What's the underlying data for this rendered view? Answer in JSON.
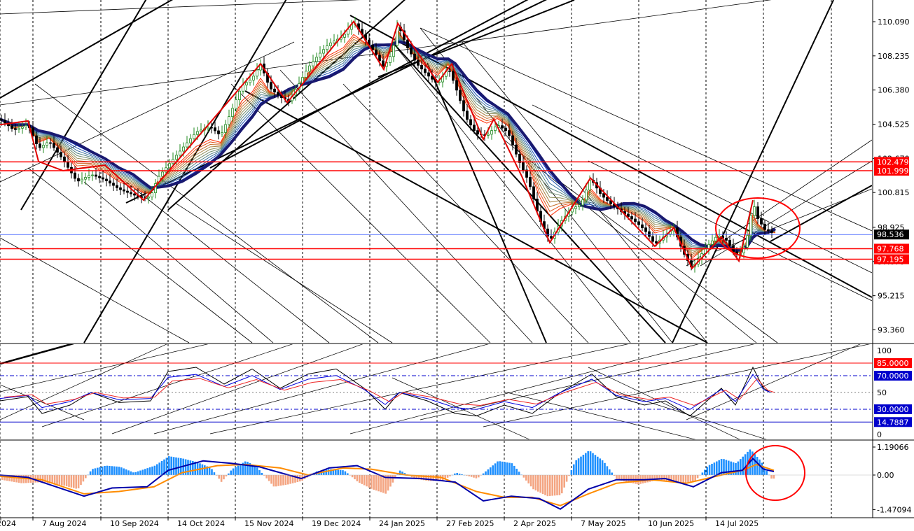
{
  "chart_data": {
    "type": "candlestick",
    "price_axis": {
      "ticks": [
        "110.090",
        "108.235",
        "106.380",
        "104.525",
        "102.670",
        "100.815",
        "98.925",
        "97.070",
        "95.215",
        "93.360"
      ],
      "tick_values": [
        110.09,
        108.235,
        106.38,
        104.525,
        102.67,
        100.815,
        98.925,
        97.07,
        95.215,
        93.36
      ],
      "ylim": [
        92.4,
        111.2
      ]
    },
    "price_levels": [
      {
        "label": "102.479",
        "value": 102.479,
        "color": "#ff0000"
      },
      {
        "label": "101.999",
        "value": 101.999,
        "color": "#ff0000"
      },
      {
        "label": "98.536",
        "value": 98.536,
        "color": "#000000",
        "current": true
      },
      {
        "label": "97.768",
        "value": 97.768,
        "color": "#ff0000"
      },
      {
        "label": "97.195",
        "value": 97.195,
        "color": "#ff0000"
      }
    ],
    "date_labels": [
      "2024",
      "7 Aug 2024",
      "10 Sep 2024",
      "14 Oct 2024",
      "15 Nov 2024",
      "19 Dec 2024",
      "24 Jan 2025",
      "27 Feb 2025",
      "2 Apr 2025",
      "7 May 2025",
      "10 Jun 2025",
      "14 Jul 2025"
    ],
    "price_series": [
      [
        0,
        104.8
      ],
      [
        20,
        104.2
      ],
      [
        40,
        104.5
      ],
      [
        55,
        103.2
      ],
      [
        70,
        103.6
      ],
      [
        90,
        102.6
      ],
      [
        110,
        101.4
      ],
      [
        130,
        101.8
      ],
      [
        150,
        101.5
      ],
      [
        170,
        101.0
      ],
      [
        190,
        100.7
      ],
      [
        205,
        100.5
      ],
      [
        215,
        100.6
      ],
      [
        225,
        101.6
      ],
      [
        240,
        102.3
      ],
      [
        260,
        103.2
      ],
      [
        280,
        104.1
      ],
      [
        300,
        104.4
      ],
      [
        315,
        103.9
      ],
      [
        330,
        105.2
      ],
      [
        345,
        106.6
      ],
      [
        360,
        107.0
      ],
      [
        372,
        107.8
      ],
      [
        385,
        106.5
      ],
      [
        400,
        106.0
      ],
      [
        412,
        105.8
      ],
      [
        425,
        106.6
      ],
      [
        440,
        107.6
      ],
      [
        455,
        108.3
      ],
      [
        470,
        108.9
      ],
      [
        490,
        109.3
      ],
      [
        505,
        110.1
      ],
      [
        520,
        109.2
      ],
      [
        535,
        108.4
      ],
      [
        548,
        107.6
      ],
      [
        560,
        108.4
      ],
      [
        568,
        110.0
      ],
      [
        580,
        108.8
      ],
      [
        595,
        107.8
      ],
      [
        610,
        107.2
      ],
      [
        625,
        106.7
      ],
      [
        640,
        107.6
      ],
      [
        650,
        106.6
      ],
      [
        665,
        104.9
      ],
      [
        680,
        104.0
      ],
      [
        695,
        103.9
      ],
      [
        710,
        104.5
      ],
      [
        725,
        104.1
      ],
      [
        740,
        102.6
      ],
      [
        755,
        101.4
      ],
      [
        770,
        99.4
      ],
      [
        785,
        98.2
      ],
      [
        800,
        99.2
      ],
      [
        815,
        99.9
      ],
      [
        830,
        100.2
      ],
      [
        843,
        101.6
      ],
      [
        858,
        100.7
      ],
      [
        872,
        100.2
      ],
      [
        890,
        99.7
      ],
      [
        905,
        99.3
      ],
      [
        920,
        98.8
      ],
      [
        935,
        98.0
      ],
      [
        950,
        98.5
      ],
      [
        962,
        98.9
      ],
      [
        975,
        97.6
      ],
      [
        988,
        96.7
      ],
      [
        1000,
        97.4
      ],
      [
        1012,
        98.0
      ],
      [
        1025,
        98.5
      ],
      [
        1038,
        98.2
      ],
      [
        1050,
        97.4
      ],
      [
        1060,
        97.6
      ],
      [
        1068,
        98.6
      ],
      [
        1075,
        100.3
      ],
      [
        1082,
        99.4
      ],
      [
        1092,
        98.8
      ],
      [
        1100,
        98.7
      ],
      [
        1107,
        98.5
      ]
    ],
    "rsi": {
      "ticks": [
        "100",
        "85.0000",
        "70.0000",
        "50",
        "30.0000",
        "14.7887",
        "0"
      ],
      "levels": [
        {
          "label": "85.0000",
          "value": 85,
          "color": "#ff0000"
        },
        {
          "label": "70.0000",
          "value": 70,
          "color": "#0000cc"
        },
        {
          "label": "30.0000",
          "value": 30,
          "color": "#0000cc"
        },
        {
          "label": "14.7887",
          "value": 14.7887,
          "color": "#0000cc"
        }
      ],
      "series": [
        [
          0,
          40
        ],
        [
          40,
          45
        ],
        [
          60,
          25
        ],
        [
          100,
          35
        ],
        [
          130,
          50
        ],
        [
          170,
          38
        ],
        [
          215,
          40
        ],
        [
          240,
          75
        ],
        [
          280,
          80
        ],
        [
          320,
          60
        ],
        [
          360,
          78
        ],
        [
          400,
          55
        ],
        [
          440,
          72
        ],
        [
          480,
          78
        ],
        [
          520,
          55
        ],
        [
          550,
          30
        ],
        [
          570,
          50
        ],
        [
          610,
          40
        ],
        [
          650,
          25
        ],
        [
          680,
          22
        ],
        [
          720,
          35
        ],
        [
          760,
          25
        ],
        [
          800,
          50
        ],
        [
          845,
          72
        ],
        [
          880,
          45
        ],
        [
          920,
          35
        ],
        [
          950,
          40
        ],
        [
          985,
          22
        ],
        [
          1030,
          55
        ],
        [
          1050,
          35
        ],
        [
          1075,
          80
        ],
        [
          1090,
          55
        ],
        [
          1100,
          50
        ]
      ]
    },
    "macd": {
      "ticks": [
        "1.19066",
        "0.00",
        "-1.47094"
      ],
      "tick_values": [
        1.19066,
        0,
        -1.47094
      ],
      "histogram": [
        [
          0,
          -0.2
        ],
        [
          30,
          -0.35
        ],
        [
          60,
          -0.3
        ],
        [
          90,
          -0.45
        ],
        [
          110,
          -0.6
        ],
        [
          130,
          0.25
        ],
        [
          150,
          0.4
        ],
        [
          170,
          0.35
        ],
        [
          190,
          0.1
        ],
        [
          220,
          0.4
        ],
        [
          240,
          0.8
        ],
        [
          260,
          0.7
        ],
        [
          280,
          0.55
        ],
        [
          300,
          0.3
        ],
        [
          315,
          -0.3
        ],
        [
          330,
          0.25
        ],
        [
          350,
          0.6
        ],
        [
          365,
          0.35
        ],
        [
          390,
          -0.5
        ],
        [
          410,
          -0.4
        ],
        [
          430,
          -0.25
        ],
        [
          450,
          0.15
        ],
        [
          470,
          0.25
        ],
        [
          490,
          0.2
        ],
        [
          510,
          -0.3
        ],
        [
          530,
          -0.6
        ],
        [
          550,
          -0.8
        ],
        [
          570,
          0.2
        ],
        [
          590,
          -0.15
        ],
        [
          610,
          -0.25
        ],
        [
          630,
          -0.25
        ],
        [
          650,
          0.1
        ],
        [
          680,
          -0.15
        ],
        [
          710,
          0.6
        ],
        [
          730,
          0.5
        ],
        [
          760,
          -0.6
        ],
        [
          780,
          -0.9
        ],
        [
          800,
          -0.85
        ],
        [
          820,
          0.6
        ],
        [
          840,
          1.05
        ],
        [
          860,
          0.6
        ],
        [
          880,
          -0.2
        ],
        [
          910,
          -0.4
        ],
        [
          940,
          -0.2
        ],
        [
          970,
          -0.35
        ],
        [
          990,
          -0.3
        ],
        [
          1010,
          0.4
        ],
        [
          1030,
          0.7
        ],
        [
          1050,
          0.5
        ],
        [
          1070,
          1.1
        ],
        [
          1085,
          0.6
        ],
        [
          1100,
          -0.15
        ]
      ],
      "main_line": [
        [
          0,
          0
        ],
        [
          40,
          -0.1
        ],
        [
          80,
          -0.5
        ],
        [
          120,
          -0.9
        ],
        [
          160,
          -0.55
        ],
        [
          210,
          -0.5
        ],
        [
          240,
          0.2
        ],
        [
          290,
          0.6
        ],
        [
          330,
          0.5
        ],
        [
          370,
          0.35
        ],
        [
          400,
          0.1
        ],
        [
          430,
          -0.15
        ],
        [
          470,
          0.3
        ],
        [
          510,
          0.4
        ],
        [
          550,
          -0.1
        ],
        [
          600,
          -0.15
        ],
        [
          650,
          -0.3
        ],
        [
          690,
          -1.1
        ],
        [
          730,
          -0.9
        ],
        [
          770,
          -1.0
        ],
        [
          800,
          -1.45
        ],
        [
          840,
          -0.6
        ],
        [
          880,
          -0.2
        ],
        [
          920,
          -0.2
        ],
        [
          950,
          -0.15
        ],
        [
          990,
          -0.5
        ],
        [
          1030,
          0.1
        ],
        [
          1060,
          0.2
        ],
        [
          1075,
          0.7
        ],
        [
          1090,
          0.25
        ],
        [
          1105,
          0.15
        ]
      ],
      "signal_line": [
        [
          0,
          -0.05
        ],
        [
          60,
          -0.2
        ],
        [
          120,
          -0.8
        ],
        [
          170,
          -0.7
        ],
        [
          220,
          -0.5
        ],
        [
          260,
          0.1
        ],
        [
          310,
          0.4
        ],
        [
          350,
          0.45
        ],
        [
          400,
          0.3
        ],
        [
          440,
          0.0
        ],
        [
          490,
          0.3
        ],
        [
          530,
          0.25
        ],
        [
          580,
          0.0
        ],
        [
          630,
          -0.1
        ],
        [
          680,
          -0.7
        ],
        [
          720,
          -0.95
        ],
        [
          760,
          -0.95
        ],
        [
          800,
          -1.3
        ],
        [
          840,
          -0.8
        ],
        [
          880,
          -0.35
        ],
        [
          930,
          -0.2
        ],
        [
          980,
          -0.35
        ],
        [
          1030,
          0.0
        ],
        [
          1060,
          0.2
        ],
        [
          1080,
          0.45
        ],
        [
          1105,
          0.2
        ]
      ]
    },
    "colors": {
      "bull_candle": "#228b22",
      "bear_candle": "#000000",
      "ma_thick": "#191970",
      "ribbon_start": "#ff2a00",
      "ribbon_end": "#00c8ff",
      "level_red": "#ff0000",
      "rsi_black": "#000000",
      "rsi_blue": "#0000dd",
      "rsi_red": "#ee2222",
      "macd_pos": "#1e90ff",
      "macd_neg": "#f4a582",
      "macd_line": "#0000aa",
      "signal_line": "#ff8c00",
      "annotation": "#ff0000"
    },
    "annotations": [
      "red ellipse around latest price action",
      "red ellipse around latest MACD values"
    ]
  }
}
